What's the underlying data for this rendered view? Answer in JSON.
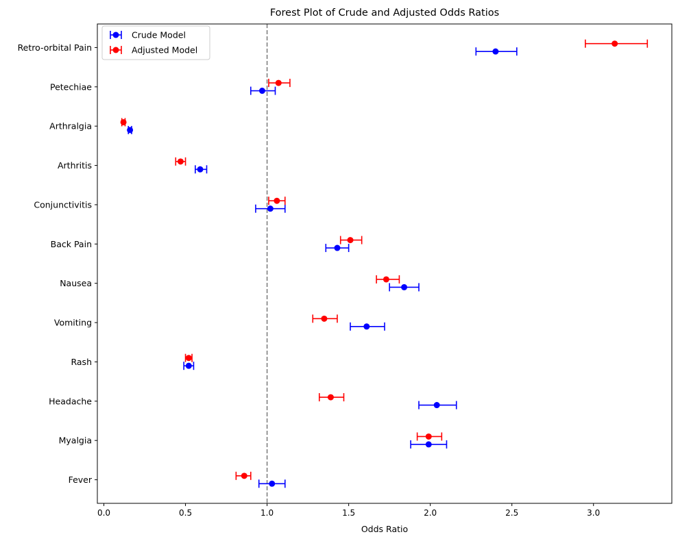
{
  "chart_data": {
    "type": "forest",
    "title": "Forest Plot of Crude and Adjusted Odds Ratios",
    "xlabel": "Odds Ratio",
    "ylabel": "",
    "xlim": [
      -0.04,
      3.48
    ],
    "xticks": [
      0.0,
      0.5,
      1.0,
      1.5,
      2.0,
      2.5,
      3.0
    ],
    "xtick_labels": [
      "0.0",
      "0.5",
      "1.0",
      "1.5",
      "2.0",
      "2.5",
      "3.0"
    ],
    "reference_line": 1.0,
    "reference_color": "#808080",
    "grid": false,
    "legend_position": "top-left",
    "categories": [
      "Fever",
      "Myalgia",
      "Headache",
      "Rash",
      "Vomiting",
      "Nausea",
      "Back Pain",
      "Conjunctivitis",
      "Arthritis",
      "Arthralgia",
      "Petechiae",
      "Retro-orbital Pain"
    ],
    "series": [
      {
        "name": "Crude Model",
        "color": "#0000ff",
        "offset": -0.1,
        "values": [
          1.03,
          1.99,
          2.04,
          0.52,
          1.61,
          1.84,
          1.43,
          1.02,
          0.59,
          0.16,
          0.97,
          2.4
        ],
        "ci_low": [
          0.95,
          1.88,
          1.93,
          0.49,
          1.51,
          1.75,
          1.36,
          0.93,
          0.56,
          0.15,
          0.9,
          2.28
        ],
        "ci_high": [
          1.11,
          2.1,
          2.16,
          0.55,
          1.72,
          1.93,
          1.5,
          1.11,
          0.63,
          0.17,
          1.05,
          2.53
        ]
      },
      {
        "name": "Adjusted Model",
        "color": "#ff0000",
        "offset": 0.1,
        "values": [
          0.86,
          1.99,
          1.39,
          0.52,
          1.35,
          1.73,
          1.51,
          1.06,
          0.47,
          0.12,
          1.07,
          3.13
        ],
        "ci_low": [
          0.81,
          1.92,
          1.32,
          0.5,
          1.28,
          1.67,
          1.45,
          1.01,
          0.44,
          0.11,
          1.01,
          2.95
        ],
        "ci_high": [
          0.9,
          2.07,
          1.47,
          0.54,
          1.43,
          1.81,
          1.58,
          1.11,
          0.5,
          0.13,
          1.14,
          3.33
        ]
      }
    ]
  }
}
